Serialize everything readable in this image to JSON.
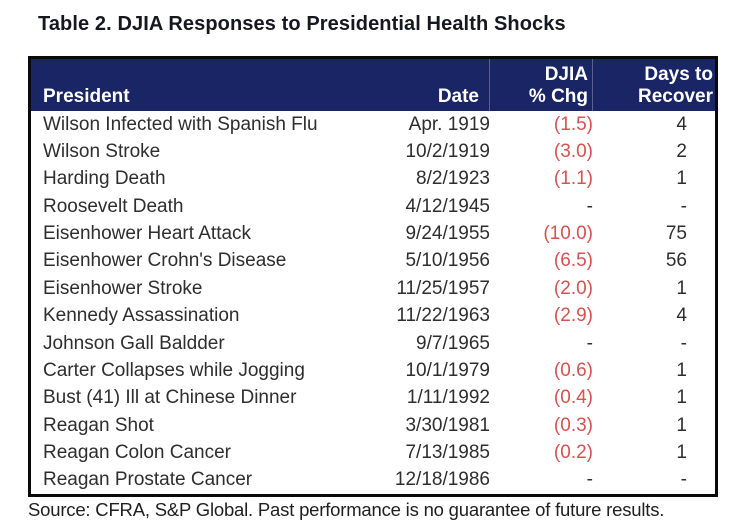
{
  "title": "Table 2. DJIA Responses to Presidential Health Shocks",
  "table": {
    "columns": [
      {
        "line1": "",
        "line2": "President"
      },
      {
        "line1": "",
        "line2": "Date"
      },
      {
        "line1": "DJIA",
        "line2": "% Chg"
      },
      {
        "line1": "Days to",
        "line2": "Recover"
      }
    ],
    "rows": [
      {
        "president": "Wilson Infected with Spanish Flu",
        "date": "Apr. 1919",
        "chg": "(1.5)",
        "days": "4"
      },
      {
        "president": "Wilson Stroke",
        "date": "10/2/1919",
        "chg": "(3.0)",
        "days": "2"
      },
      {
        "president": "Harding Death",
        "date": "8/2/1923",
        "chg": "(1.1)",
        "days": "1"
      },
      {
        "president": "Roosevelt Death",
        "date": "4/12/1945",
        "chg": "-",
        "days": "-"
      },
      {
        "president": "Eisenhower Heart Attack",
        "date": "9/24/1955",
        "chg": "(10.0)",
        "days": "75"
      },
      {
        "president": "Eisenhower Crohn's Disease",
        "date": "5/10/1956",
        "chg": "(6.5)",
        "days": "56"
      },
      {
        "president": "Eisenhower Stroke",
        "date": "11/25/1957",
        "chg": "(2.0)",
        "days": "1"
      },
      {
        "president": "Kennedy Assassination",
        "date": "11/22/1963",
        "chg": "(2.9)",
        "days": "4"
      },
      {
        "president": "Johnson Gall Baldder",
        "date": "9/7/1965",
        "chg": "-",
        "days": "-"
      },
      {
        "president": "Carter Collapses while Jogging",
        "date": "10/1/1979",
        "chg": "(0.6)",
        "days": "1"
      },
      {
        "president": "Bust (41) Ill at Chinese Dinner",
        "date": "1/11/1992",
        "chg": "(0.4)",
        "days": "1"
      },
      {
        "president": "Reagan Shot",
        "date": "3/30/1981",
        "chg": "(0.3)",
        "days": "1"
      },
      {
        "president": "Reagan Colon Cancer",
        "date": "7/13/1985",
        "chg": "(0.2)",
        "days": "1"
      },
      {
        "president": "Reagan Prostate Cancer",
        "date": "12/18/1986",
        "chg": "-",
        "days": "-"
      }
    ]
  },
  "source": "Source: CFRA, S&P Global. Past performance is no guarantee of future results.",
  "chart_data": {
    "type": "table",
    "title": "Table 2. DJIA Responses to Presidential Health Shocks",
    "columns": [
      "President",
      "Date",
      "DJIA % Chg",
      "Days to Recover"
    ],
    "djia_pct_chg_values": [
      -1.5,
      -3.0,
      -1.1,
      null,
      -10.0,
      -6.5,
      -2.0,
      -2.9,
      null,
      -0.6,
      -0.4,
      -0.3,
      -0.2,
      null
    ],
    "days_to_recover_values": [
      4,
      2,
      1,
      null,
      75,
      56,
      1,
      4,
      null,
      1,
      1,
      1,
      1,
      null
    ]
  },
  "colors": {
    "header_bg": "#1a2566",
    "header_text": "#ffffff",
    "negative": "#d65151",
    "body_text": "#2e2e2e",
    "border": "#0a0a0a"
  }
}
